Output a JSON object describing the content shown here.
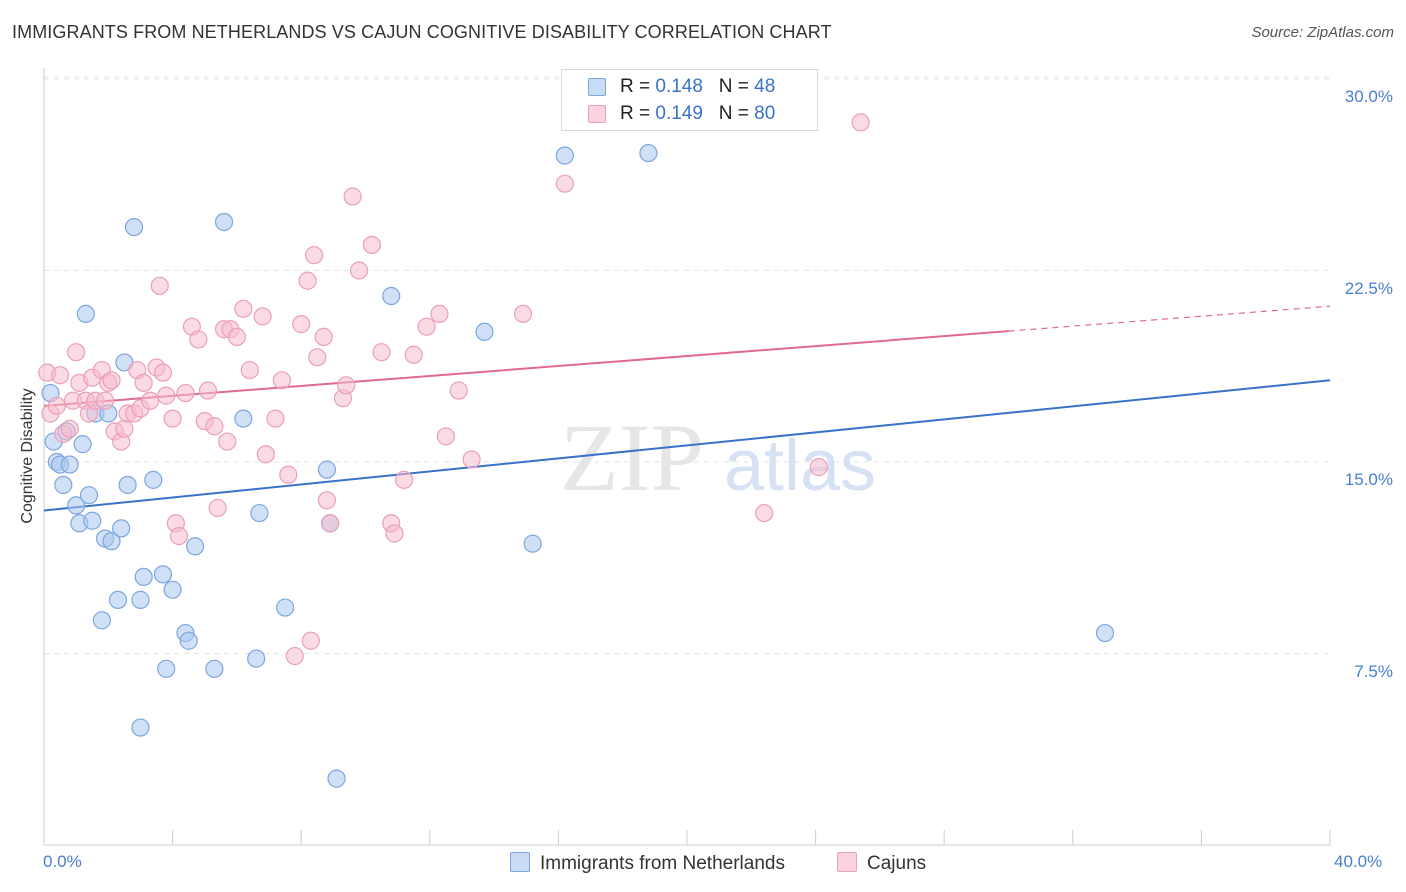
{
  "title": "IMMIGRANTS FROM NETHERLANDS VS CAJUN COGNITIVE DISABILITY CORRELATION CHART",
  "source": "Source: ZipAtlas.com",
  "watermark": {
    "zip": "ZIP",
    "atlas": "atlas"
  },
  "legend": {
    "rows": [
      {
        "r_label": "R = ",
        "r_value": "0.148",
        "n_label": "N = ",
        "n_value": "48",
        "color": "#a9c8f0"
      },
      {
        "r_label": "R = ",
        "r_value": "0.149",
        "n_label": "N = ",
        "n_value": "80",
        "color": "#f6bccd"
      }
    ]
  },
  "bottom_legend": {
    "series1": "Immigrants from Netherlands",
    "series2": "Cajuns"
  },
  "chart_data": {
    "type": "scatter",
    "title": "IMMIGRANTS FROM NETHERLANDS VS CAJUN COGNITIVE DISABILITY CORRELATION CHART",
    "ylabel": "Cognitive Disability",
    "xlabel": "",
    "xlim": [
      0,
      40
    ],
    "ylim": [
      0,
      30
    ],
    "x_tick_labels": [
      "0.0%",
      "40.0%"
    ],
    "y_ticks": [
      7.5,
      15.0,
      22.5,
      30.0
    ],
    "y_tick_labels": [
      "7.5%",
      "15.0%",
      "22.5%",
      "30.0%"
    ],
    "grid": true,
    "series": [
      {
        "name": "Immigrants from Netherlands",
        "color": "#3a72c9",
        "fill": "rgba(169,200,240,0.55)",
        "stroke": "#7ea6dd",
        "trend": {
          "x0": 0,
          "y0": 13.1,
          "x1": 40,
          "y1": 18.2,
          "dash_from": null
        },
        "points": [
          [
            0.2,
            17.7
          ],
          [
            0.3,
            15.8
          ],
          [
            0.4,
            15.0
          ],
          [
            0.5,
            14.9
          ],
          [
            0.6,
            14.1
          ],
          [
            0.7,
            16.2
          ],
          [
            0.8,
            14.9
          ],
          [
            1.0,
            13.3
          ],
          [
            1.1,
            12.6
          ],
          [
            1.2,
            15.7
          ],
          [
            1.3,
            20.8
          ],
          [
            1.4,
            13.7
          ],
          [
            1.5,
            12.7
          ],
          [
            1.6,
            16.9
          ],
          [
            1.8,
            8.8
          ],
          [
            1.9,
            12.0
          ],
          [
            2.0,
            16.9
          ],
          [
            2.1,
            11.9
          ],
          [
            2.3,
            9.6
          ],
          [
            2.4,
            12.4
          ],
          [
            2.5,
            18.9
          ],
          [
            2.6,
            14.1
          ],
          [
            2.8,
            24.2
          ],
          [
            3.0,
            9.6
          ],
          [
            3.1,
            10.5
          ],
          [
            3.4,
            14.3
          ],
          [
            3.7,
            10.6
          ],
          [
            3.8,
            6.9
          ],
          [
            4.0,
            10.0
          ],
          [
            4.4,
            8.3
          ],
          [
            4.5,
            8.0
          ],
          [
            4.7,
            11.7
          ],
          [
            5.3,
            6.9
          ],
          [
            5.6,
            24.4
          ],
          [
            6.2,
            16.7
          ],
          [
            6.6,
            7.3
          ],
          [
            6.7,
            13.0
          ],
          [
            7.5,
            9.3
          ],
          [
            8.8,
            14.7
          ],
          [
            8.9,
            12.6
          ],
          [
            9.1,
            2.6
          ],
          [
            10.8,
            21.5
          ],
          [
            13.7,
            20.1
          ],
          [
            15.2,
            11.8
          ],
          [
            16.2,
            27.0
          ],
          [
            18.8,
            27.1
          ],
          [
            33.0,
            8.3
          ],
          [
            3.0,
            4.6
          ]
        ]
      },
      {
        "name": "Cajuns",
        "color": "#e06a92",
        "fill": "rgba(246,188,205,0.55)",
        "stroke": "#eaa0b8",
        "trend": {
          "x0": 0,
          "y0": 17.2,
          "x1": 40,
          "y1": 21.1,
          "dash_from": 30
        },
        "points": [
          [
            0.1,
            18.5
          ],
          [
            0.2,
            16.9
          ],
          [
            0.4,
            17.2
          ],
          [
            0.5,
            18.4
          ],
          [
            0.6,
            16.1
          ],
          [
            0.8,
            16.3
          ],
          [
            0.9,
            17.4
          ],
          [
            1.0,
            19.3
          ],
          [
            1.1,
            18.1
          ],
          [
            1.3,
            17.4
          ],
          [
            1.4,
            16.9
          ],
          [
            1.5,
            18.3
          ],
          [
            1.6,
            17.4
          ],
          [
            1.8,
            18.6
          ],
          [
            1.9,
            17.4
          ],
          [
            2.0,
            18.1
          ],
          [
            2.1,
            18.2
          ],
          [
            2.2,
            16.2
          ],
          [
            2.4,
            15.8
          ],
          [
            2.5,
            16.3
          ],
          [
            2.6,
            16.9
          ],
          [
            2.8,
            16.9
          ],
          [
            2.9,
            18.6
          ],
          [
            3.0,
            17.1
          ],
          [
            3.1,
            18.1
          ],
          [
            3.3,
            17.4
          ],
          [
            3.5,
            18.7
          ],
          [
            3.6,
            21.9
          ],
          [
            3.7,
            18.5
          ],
          [
            3.8,
            17.6
          ],
          [
            4.0,
            16.7
          ],
          [
            4.1,
            12.6
          ],
          [
            4.2,
            12.1
          ],
          [
            4.4,
            17.7
          ],
          [
            4.6,
            20.3
          ],
          [
            4.8,
            19.8
          ],
          [
            5.0,
            16.6
          ],
          [
            5.1,
            17.8
          ],
          [
            5.3,
            16.4
          ],
          [
            5.4,
            13.2
          ],
          [
            5.6,
            20.2
          ],
          [
            5.7,
            15.8
          ],
          [
            5.8,
            20.2
          ],
          [
            6.0,
            19.9
          ],
          [
            6.2,
            21.0
          ],
          [
            6.4,
            18.6
          ],
          [
            6.8,
            20.7
          ],
          [
            6.9,
            15.3
          ],
          [
            7.2,
            16.7
          ],
          [
            7.4,
            18.2
          ],
          [
            7.6,
            14.5
          ],
          [
            7.8,
            7.4
          ],
          [
            8.0,
            20.4
          ],
          [
            8.2,
            22.1
          ],
          [
            8.3,
            8.0
          ],
          [
            8.4,
            23.1
          ],
          [
            8.5,
            19.1
          ],
          [
            8.7,
            19.9
          ],
          [
            8.8,
            13.5
          ],
          [
            8.9,
            12.6
          ],
          [
            9.3,
            17.5
          ],
          [
            9.4,
            18.0
          ],
          [
            9.6,
            25.4
          ],
          [
            9.8,
            22.5
          ],
          [
            10.2,
            23.5
          ],
          [
            10.5,
            19.3
          ],
          [
            10.8,
            12.6
          ],
          [
            10.9,
            12.2
          ],
          [
            11.2,
            14.3
          ],
          [
            11.5,
            19.2
          ],
          [
            11.9,
            20.3
          ],
          [
            12.3,
            20.8
          ],
          [
            12.5,
            16.0
          ],
          [
            12.9,
            17.8
          ],
          [
            13.3,
            15.1
          ],
          [
            14.9,
            20.8
          ],
          [
            16.2,
            25.9
          ],
          [
            22.4,
            13.0
          ],
          [
            24.1,
            14.8
          ],
          [
            25.4,
            28.3
          ]
        ]
      }
    ]
  }
}
